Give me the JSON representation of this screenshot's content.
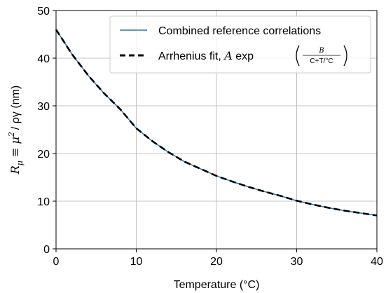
{
  "chart_data": {
    "type": "line",
    "xlabel": "Temperature (°C)",
    "ylabel": {
      "main": "R",
      "sub": "μ",
      "rest": " ≡ μ",
      "sup": "2",
      "tail": "/ ργ (nm)"
    },
    "xlim": [
      0,
      40
    ],
    "ylim": [
      0,
      50
    ],
    "xticks": [
      0,
      10,
      20,
      30,
      40
    ],
    "yticks": [
      0,
      10,
      20,
      30,
      40,
      50
    ],
    "grid": true,
    "legend_position": "top-right",
    "series": [
      {
        "name": "Combined reference correlations",
        "style": "solid",
        "color": "#1f77b4",
        "x": [
          0,
          2,
          4,
          6,
          8,
          10,
          12,
          14,
          16,
          18,
          20,
          22,
          24,
          26,
          28,
          30,
          32,
          34,
          36,
          38,
          40
        ],
        "y": [
          46.0,
          40.8,
          36.4,
          32.6,
          29.3,
          25.3,
          22.6,
          20.3,
          18.3,
          16.8,
          15.3,
          14.1,
          13.0,
          12.0,
          11.1,
          10.1,
          9.3,
          8.6,
          8.0,
          7.5,
          7.0
        ]
      },
      {
        "name": {
          "prefix": "Arrhenius fit, ",
          "A": "A",
          "exp": " exp",
          "num": "B",
          "den": "C+T/°C"
        },
        "style": "dashed",
        "color": "#000000",
        "x": [
          0,
          2,
          4,
          6,
          8,
          10,
          12,
          14,
          16,
          18,
          20,
          22,
          24,
          26,
          28,
          30,
          32,
          34,
          36,
          38,
          40
        ],
        "y": [
          46.0,
          40.8,
          36.4,
          32.6,
          29.3,
          25.3,
          22.6,
          20.3,
          18.3,
          16.8,
          15.3,
          14.1,
          13.0,
          12.0,
          11.1,
          10.1,
          9.3,
          8.6,
          8.0,
          7.5,
          7.0
        ]
      }
    ]
  }
}
